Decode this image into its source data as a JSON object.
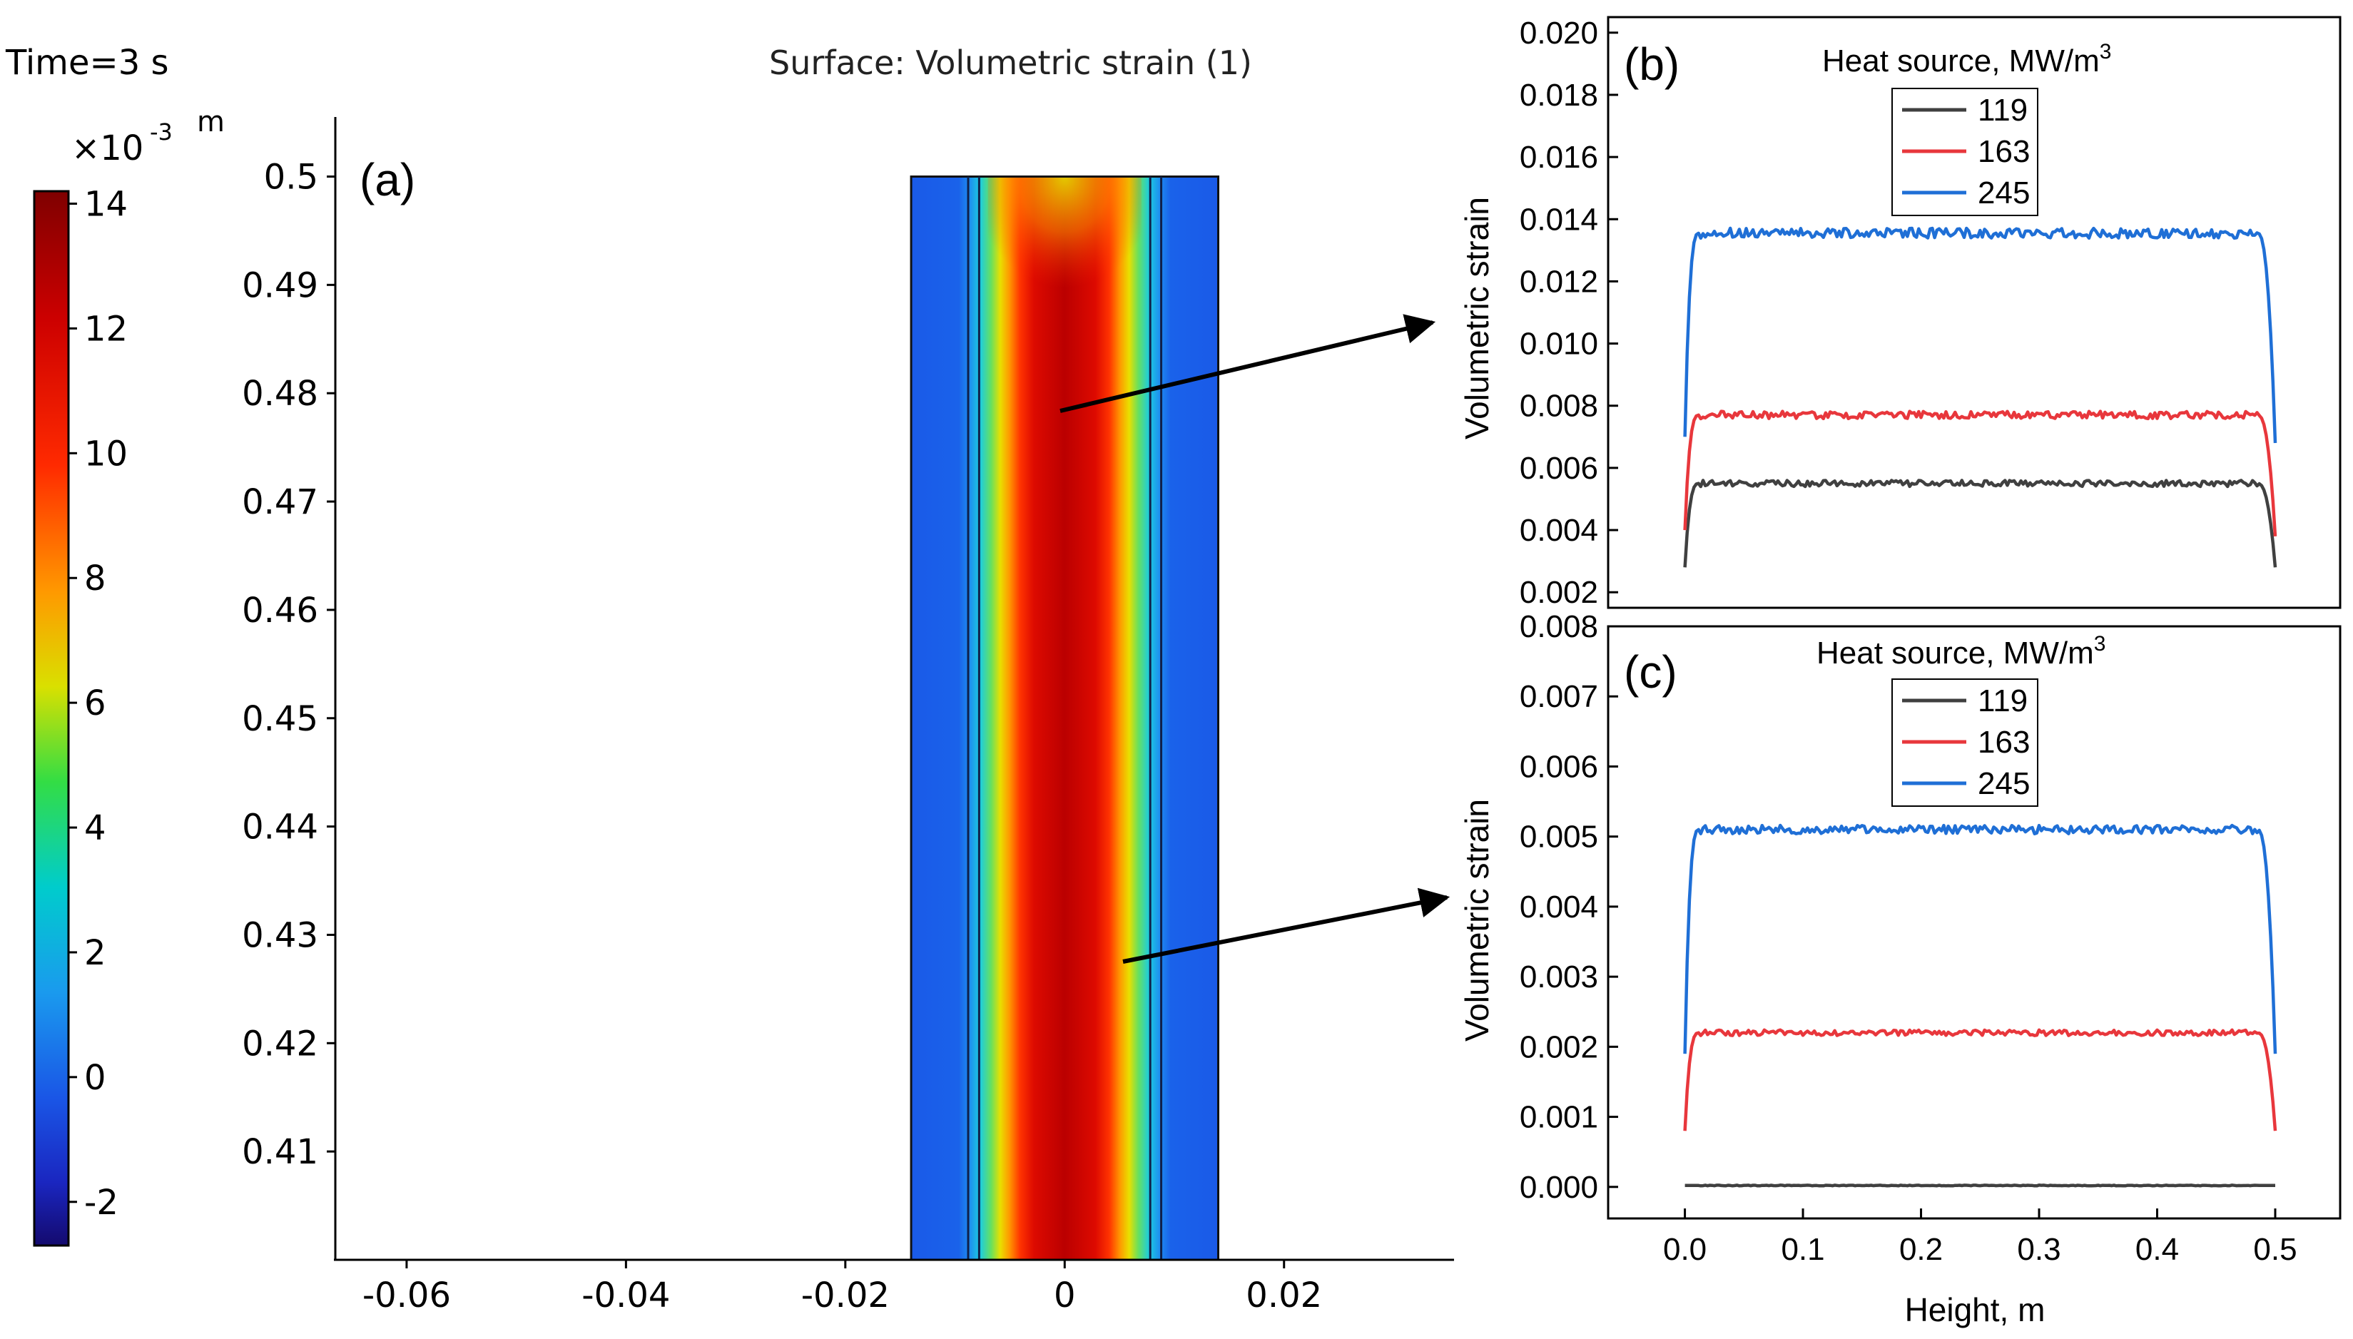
{
  "header": {
    "time_label": "Time=3 s",
    "surface_label": "Surface: Volumetric strain (1)"
  },
  "colorbar": {
    "exponent_base": "×10",
    "exponent_power": "-3",
    "unit": "m",
    "ticks": [
      "14",
      "12",
      "10",
      "8",
      "6",
      "4",
      "2",
      "0",
      "-2"
    ],
    "range": [
      -2.7,
      14.2
    ]
  },
  "chart_data": [
    {
      "panel": "(a)",
      "type": "heatmap",
      "title": "Surface: Volumetric strain (1)",
      "time": "Time=3 s",
      "x_ticks": [
        "-0.06",
        "-0.04",
        "-0.02",
        "0",
        "0.02"
      ],
      "y_ticks": [
        "0.5",
        "0.49",
        "0.48",
        "0.47",
        "0.46",
        "0.45",
        "0.44",
        "0.43",
        "0.42",
        "0.41"
      ],
      "xlim": [
        -0.0665,
        0.0355
      ],
      "ylim": [
        0.4,
        0.5055
      ],
      "domain_x": [
        -0.014,
        0.014
      ],
      "domain_y": [
        0.4,
        0.5
      ],
      "inner_walls_x": [
        -0.0088,
        -0.0078,
        0.0078,
        0.0088
      ],
      "colormap": "rainbow",
      "value_range": [
        -2.7,
        14.2
      ],
      "arrow_color": "#000000"
    },
    {
      "panel": "(b)",
      "type": "line",
      "ylabel": "Volumetric strain",
      "legend_title": "Heat source, MW/m",
      "legend_title_sup": "3",
      "legend_position": "top-center",
      "y_ticks": [
        "0.002",
        "0.004",
        "0.006",
        "0.008",
        "0.010",
        "0.012",
        "0.014",
        "0.016",
        "0.018",
        "0.020"
      ],
      "ylim": [
        0.0015,
        0.0205
      ],
      "xlim": [
        -0.065,
        0.555
      ],
      "series": [
        {
          "name": "119",
          "color": "#404040",
          "plateau": 0.0055,
          "start": 0.0028,
          "end": 0.0028,
          "noise": 0.0001
        },
        {
          "name": "163",
          "color": "#e8373c",
          "plateau": 0.0077,
          "start": 0.004,
          "end": 0.0038,
          "noise": 0.00012
        },
        {
          "name": "245",
          "color": "#1f6fd6",
          "plateau": 0.01355,
          "start": 0.007,
          "end": 0.0068,
          "noise": 0.00016
        }
      ]
    },
    {
      "panel": "(c)",
      "type": "line",
      "xlabel": "Height, m",
      "ylabel": "Volumetric strain",
      "legend_title": "Heat source, MW/m",
      "legend_title_sup": "3",
      "legend_position": "top-center",
      "x_ticks": [
        "0.0",
        "0.1",
        "0.2",
        "0.3",
        "0.4",
        "0.5"
      ],
      "y_ticks": [
        "0.000",
        "0.001",
        "0.002",
        "0.003",
        "0.004",
        "0.005",
        "0.006",
        "0.007",
        "0.008"
      ],
      "ylim": [
        -0.00045,
        0.008
      ],
      "xlim": [
        -0.065,
        0.555
      ],
      "series": [
        {
          "name": "119",
          "color": "#404040",
          "plateau": 2e-05,
          "start": 2e-05,
          "end": 2e-05,
          "noise": 5e-06
        },
        {
          "name": "163",
          "color": "#e8373c",
          "plateau": 0.0022,
          "start": 0.0008,
          "end": 0.0008,
          "noise": 4e-05
        },
        {
          "name": "245",
          "color": "#1f6fd6",
          "plateau": 0.0051,
          "start": 0.0019,
          "end": 0.0019,
          "noise": 6e-05
        }
      ]
    }
  ]
}
